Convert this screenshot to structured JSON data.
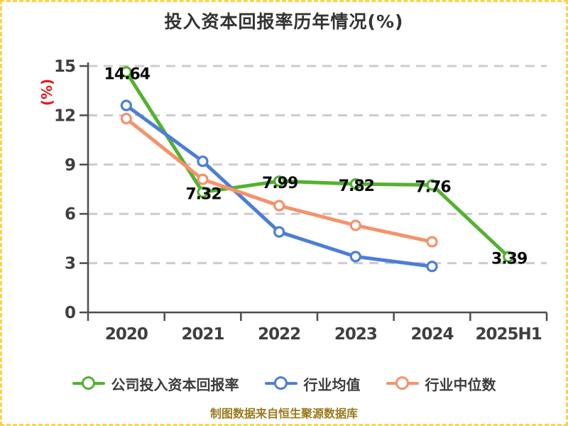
{
  "chart_data": {
    "type": "line",
    "title": "投入资本回报率历年情况(%)",
    "ylabel": "(%)",
    "categories": [
      "2020",
      "2021",
      "2022",
      "2023",
      "2024",
      "2025H1"
    ],
    "series": [
      {
        "name": "公司投入资本回报率",
        "color": "#52b22e",
        "values": [
          14.64,
          7.32,
          7.99,
          7.82,
          7.76,
          3.39
        ],
        "point_labels": [
          "14.64",
          "7.32",
          "7.99",
          "7.82",
          "7.76",
          "3.39"
        ]
      },
      {
        "name": "行业均值",
        "color": "#4c7ed7",
        "values": [
          12.6,
          9.2,
          4.9,
          3.4,
          2.8
        ],
        "point_labels": []
      },
      {
        "name": "行业中位数",
        "color": "#f5926a",
        "values": [
          11.8,
          8.1,
          6.5,
          5.3,
          4.3
        ],
        "point_labels": []
      }
    ],
    "ylim": [
      0,
      15
    ],
    "yticks": [
      0,
      3,
      6,
      9,
      12,
      15
    ],
    "grid": "horizontal-dashed",
    "legend_position": "bottom",
    "marker_style": "hollow-circle",
    "axis_color": "#4d4d4d",
    "grid_color": "#cccccc",
    "tick_label_color": "#3f3f3f",
    "ylabel_color": "#e11b1b",
    "border_color": "#ffd24a"
  },
  "footer": {
    "text": "制图数据来自恒生聚源数据库",
    "color": "#9a7a1e"
  }
}
